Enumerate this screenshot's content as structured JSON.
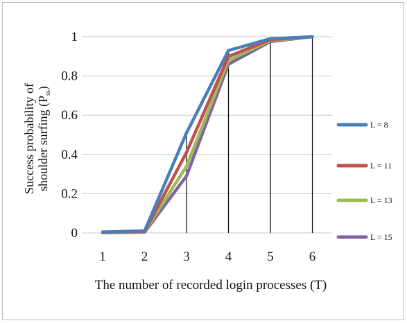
{
  "chart_data": {
    "type": "line",
    "x": [
      1,
      2,
      3,
      4,
      5,
      6
    ],
    "xlabel": "The number of recorded login processes (T)",
    "ylabel_line1": "Success probability of",
    "ylabel_line2": "shoulder surfing (P",
    "ylabel_subscript": "ss",
    "ylabel_close": ")",
    "ylim": [
      0,
      1
    ],
    "yticks": [
      "0",
      "0.2",
      "0.4",
      "0.6",
      "0.8",
      "1"
    ],
    "xticks": [
      "1",
      "2",
      "3",
      "4",
      "5",
      "6"
    ],
    "grid": "horizontal",
    "drop_lines": true,
    "legend_position": "right",
    "series": [
      {
        "name": "L = 8",
        "color": "#4a7ebb",
        "values": [
          0.005,
          0.01,
          0.51,
          0.93,
          0.99,
          1.0
        ]
      },
      {
        "name": "L = 11",
        "color": "#c0504d",
        "values": [
          0.003,
          0.007,
          0.41,
          0.9,
          0.985,
          1.0
        ]
      },
      {
        "name": "L = 13",
        "color": "#9bbb59",
        "values": [
          0.002,
          0.005,
          0.34,
          0.88,
          0.98,
          1.0
        ]
      },
      {
        "name": "L = 15",
        "color": "#8064a2",
        "values": [
          0.001,
          0.003,
          0.29,
          0.86,
          0.975,
          1.0
        ]
      }
    ]
  }
}
